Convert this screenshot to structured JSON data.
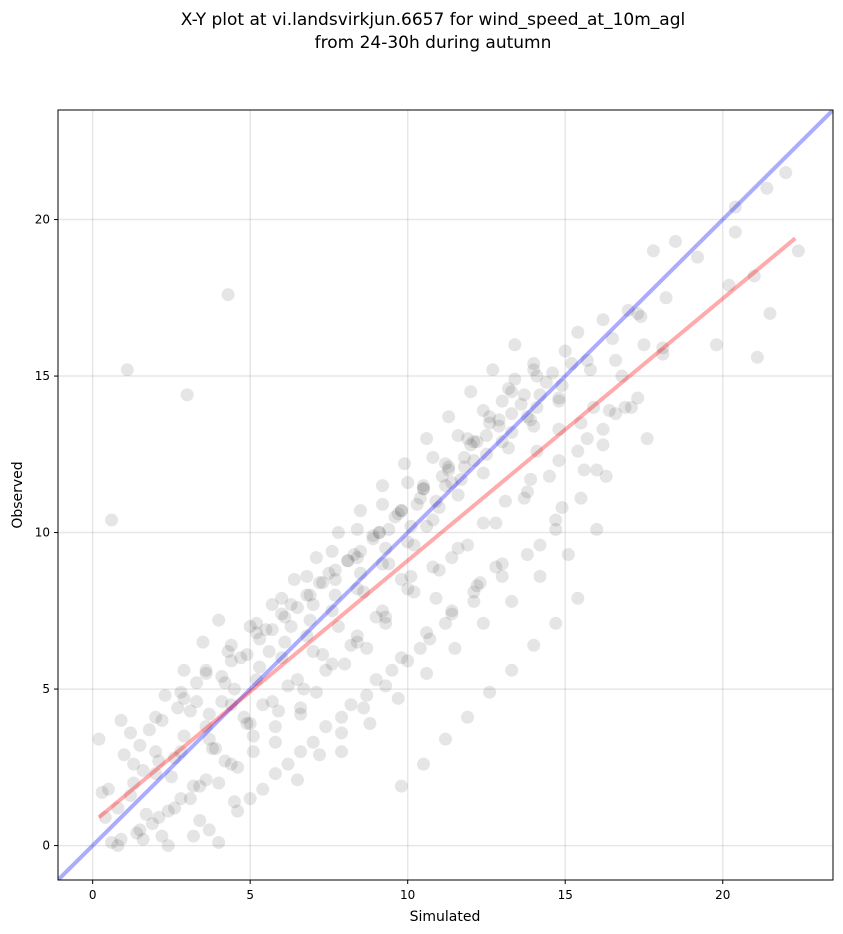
{
  "chart_data": {
    "type": "scatter",
    "title_line1": "X-Y plot at vi.landsvirkjun.6657 for wind_speed_at_10m_agl",
    "title_line2": "from 24-30h during autumn",
    "xlabel": "Simulated",
    "ylabel": "Observed",
    "xlim": [
      -1.1,
      23.5
    ],
    "ylim": [
      -1.1,
      23.5
    ],
    "xticks": [
      0,
      5,
      10,
      15,
      20
    ],
    "yticks": [
      0,
      5,
      10,
      15,
      20
    ],
    "grid": true,
    "colors": {
      "points": "#000000",
      "identity_line": "#0000ff",
      "fit_line": "#ff0000"
    },
    "lines": [
      {
        "name": "identity",
        "x": [
          -1.1,
          23.5
        ],
        "y": [
          -1.1,
          23.5
        ]
      },
      {
        "name": "fit",
        "x": [
          0.2,
          22.3
        ],
        "y": [
          0.9,
          19.4
        ]
      }
    ],
    "points": {
      "x": [
        1.1,
        4.3,
        3.0,
        0.6,
        0.2,
        0.5,
        0.9,
        1.3,
        1.5,
        1.7,
        2.0,
        2.2,
        2.5,
        2.8,
        3.1,
        3.4,
        3.7,
        4.0,
        4.2,
        4.5,
        4.8,
        0.3,
        0.8,
        1.2,
        1.6,
        2.1,
        2.6,
        3.2,
        3.8,
        4.1,
        4.6,
        5.0,
        5.4,
        5.8,
        6.2,
        6.6,
        7.0,
        7.4,
        7.8,
        8.2,
        8.6,
        9.0,
        9.4,
        9.8,
        10.2,
        10.6,
        11.0,
        11.4,
        11.8,
        12.2,
        12.6,
        13.0,
        13.4,
        13.8,
        14.2,
        14.6,
        15.0,
        15.4,
        15.8,
        16.2,
        16.6,
        17.0,
        17.4,
        17.8,
        18.2,
        18.5,
        19.8,
        20.4,
        21.1,
        21.5,
        22.0,
        22.4,
        20.2,
        21.0,
        17.5,
        16.0,
        14.9,
        14.2,
        13.8,
        12.3,
        11.4,
        10.9,
        10.1,
        9.3,
        8.7,
        8.0,
        7.1,
        6.6,
        5.8,
        5.1,
        4.4,
        3.6,
        3.1,
        2.4,
        1.9,
        1.4,
        0.9,
        0.6,
        5.2,
        6.0,
        6.8,
        7.5,
        8.3,
        9.1,
        9.8,
        10.5,
        11.3,
        12.0,
        12.9,
        13.6,
        14.4,
        15.2,
        15.9,
        16.8,
        17.6,
        18.1,
        2.3,
        2.9,
        3.5,
        4.0,
        4.7,
        5.5,
        6.3,
        7.2,
        8.1,
        8.9,
        9.6,
        10.4,
        11.1,
        11.8,
        12.5,
        13.3,
        14.1,
        14.8,
        15.6,
        16.4,
        3.9,
        4.9,
        5.7,
        6.5,
        7.3,
        8.4,
        9.2,
        10.0,
        10.8,
        11.6,
        12.4,
        13.1,
        13.9,
        14.7,
        15.5,
        16.3,
        1.0,
        1.8,
        2.7,
        3.3,
        4.4,
        5.3,
        6.1,
        6.9,
        7.7,
        8.5,
        9.4,
        10.3,
        11.2,
        12.1,
        13.0,
        13.9,
        14.8,
        15.7,
        16.6,
        17.3,
        7.9,
        8.8,
        9.7,
        10.6,
        11.5,
        12.4,
        13.3,
        14.2,
        15.1,
        16.0,
        2.6,
        3.4,
        4.2,
        5.1,
        5.9,
        6.7,
        7.6,
        8.4,
        9.3,
        10.2,
        11.0,
        11.9,
        12.8,
        13.7,
        14.5,
        15.4,
        16.2,
        17.1,
        3.7,
        4.6,
        5.4,
        6.2,
        7.0,
        7.9,
        8.7,
        9.5,
        10.4,
        11.2,
        12.1,
        13.0,
        13.8,
        14.7,
        0.4,
        1.2,
        2.0,
        2.8,
        3.6,
        4.4,
        5.2,
        6.0,
        6.8,
        7.6,
        8.4,
        9.2,
        10.0,
        10.8,
        11.6,
        12.4,
        13.2,
        14.0,
        14.8,
        4.0,
        3.2,
        2.4,
        1.6,
        0.8,
        6.5,
        7.2,
        7.9,
        8.6,
        9.3,
        10.0,
        10.7,
        11.4,
        12.1,
        12.8,
        9.8,
        10.5,
        11.2,
        11.9,
        12.6,
        13.3,
        14.0,
        14.7,
        15.4,
        5.6,
        6.3,
        7.0,
        7.7,
        8.4,
        9.1,
        9.8,
        10.5,
        11.2,
        11.9,
        12.6,
        13.3,
        14.0,
        1.5,
        2.2,
        2.9,
        3.6,
        4.3,
        5.0,
        5.7,
        6.4,
        7.1,
        7.8,
        8.5,
        9.2,
        9.9,
        10.6,
        11.3,
        12.0,
        12.7,
        13.4,
        14.1,
        14.8,
        15.5,
        16.2,
        16.9,
        2.0,
        2.8,
        3.6,
        4.4,
        5.2,
        6.0,
        6.8,
        7.6,
        8.4,
        9.2,
        10.0,
        10.8,
        11.6,
        12.4,
        13.2,
        14.0,
        3.3,
        4.1,
        4.9,
        5.7,
        6.5,
        7.3,
        8.1,
        8.9,
        9.7,
        10.5,
        11.3,
        12.1,
        12.9,
        13.7,
        5.0,
        5.8,
        6.6,
        7.4,
        8.2,
        9.0,
        9.8,
        10.6,
        11.4,
        12.2,
        13.0,
        1.3,
        2.1,
        2.9,
        3.7,
        4.5,
        5.3,
        6.1,
        6.9,
        7.7,
        8.5,
        9.3,
        10.1,
        10.9,
        11.7,
        12.5,
        13.3,
        14.1,
        14.9,
        15.7,
        16.5,
        17.3,
        18.1,
        19.2,
        20.4,
        21.4
      ],
      "y": [
        15.2,
        17.6,
        14.4,
        10.4,
        3.4,
        1.8,
        4.0,
        2.6,
        0.5,
        1.0,
        3.0,
        0.3,
        2.2,
        1.5,
        4.3,
        0.8,
        3.4,
        2.0,
        5.2,
        1.4,
        4.1,
        1.7,
        1.2,
        3.6,
        2.4,
        0.9,
        2.8,
        1.9,
        3.1,
        4.6,
        2.5,
        3.9,
        4.5,
        3.3,
        5.1,
        4.4,
        6.2,
        5.6,
        7.0,
        6.4,
        8.1,
        7.3,
        9.0,
        8.5,
        9.6,
        10.2,
        10.8,
        11.6,
        12.1,
        12.9,
        13.5,
        14.2,
        14.9,
        13.7,
        14.4,
        15.1,
        15.8,
        16.4,
        15.2,
        16.8,
        15.5,
        17.1,
        16.9,
        19.0,
        17.5,
        19.3,
        16.0,
        20.4,
        15.6,
        17.0,
        21.5,
        19.0,
        17.9,
        18.2,
        16.0,
        12.0,
        10.8,
        9.6,
        11.3,
        8.4,
        9.2,
        7.9,
        8.6,
        7.1,
        6.3,
        5.8,
        4.9,
        4.2,
        3.8,
        3.0,
        2.6,
        2.1,
        1.5,
        1.1,
        0.7,
        0.4,
        0.2,
        0.1,
        6.8,
        7.4,
        8.0,
        8.7,
        9.3,
        10.0,
        10.7,
        11.4,
        12.0,
        12.8,
        13.4,
        14.1,
        14.8,
        15.4,
        14.0,
        15.0,
        13.0,
        15.7,
        4.8,
        5.6,
        6.5,
        7.2,
        6.0,
        6.9,
        7.7,
        8.4,
        9.1,
        9.8,
        10.5,
        11.1,
        11.8,
        12.4,
        13.1,
        13.8,
        12.6,
        13.3,
        12.0,
        13.9,
        3.1,
        3.9,
        4.6,
        5.3,
        6.1,
        6.7,
        7.5,
        8.2,
        8.9,
        9.5,
        10.3,
        11.0,
        11.7,
        10.4,
        11.1,
        11.8,
        2.9,
        3.7,
        4.4,
        5.2,
        5.9,
        6.6,
        7.3,
        8.0,
        8.8,
        9.4,
        10.1,
        10.9,
        11.5,
        12.3,
        12.9,
        13.6,
        12.3,
        13.0,
        13.8,
        14.3,
        3.0,
        3.9,
        4.7,
        5.5,
        6.3,
        7.1,
        7.8,
        8.6,
        9.3,
        10.1,
        1.2,
        1.9,
        2.7,
        3.5,
        4.3,
        5.0,
        5.8,
        6.5,
        7.3,
        8.1,
        8.8,
        9.6,
        10.3,
        11.1,
        11.8,
        12.6,
        13.3,
        14.0,
        0.5,
        1.1,
        1.8,
        2.6,
        3.3,
        4.1,
        4.8,
        5.6,
        6.3,
        7.1,
        7.8,
        8.6,
        9.3,
        10.1,
        0.9,
        1.6,
        2.3,
        3.0,
        3.8,
        4.5,
        5.3,
        6.0,
        6.7,
        7.5,
        8.2,
        9.0,
        9.7,
        10.4,
        11.2,
        11.9,
        12.7,
        13.4,
        14.2,
        0.1,
        0.3,
        0.0,
        0.2,
        0.0,
        2.1,
        2.9,
        3.6,
        4.4,
        5.1,
        5.9,
        6.6,
        7.4,
        8.1,
        8.9,
        1.9,
        2.6,
        3.4,
        4.1,
        4.9,
        5.6,
        6.4,
        7.1,
        7.9,
        6.2,
        7.0,
        7.7,
        8.5,
        9.2,
        10.0,
        10.7,
        11.5,
        12.2,
        13.0,
        13.7,
        14.5,
        15.2,
        3.2,
        4.0,
        4.7,
        5.5,
        6.2,
        7.0,
        7.7,
        8.5,
        9.2,
        10.0,
        10.7,
        11.5,
        12.2,
        13.0,
        13.7,
        14.5,
        15.2,
        16.0,
        15.0,
        14.3,
        13.5,
        12.8,
        14.0,
        4.1,
        4.9,
        5.6,
        6.4,
        7.1,
        7.9,
        8.6,
        9.4,
        10.1,
        10.9,
        11.6,
        12.4,
        13.1,
        13.9,
        14.6,
        15.4,
        4.6,
        5.4,
        6.1,
        6.9,
        7.6,
        8.4,
        9.1,
        9.9,
        10.6,
        11.4,
        12.1,
        12.9,
        13.6,
        14.4,
        1.5,
        2.3,
        3.0,
        3.8,
        4.5,
        5.3,
        6.0,
        6.8,
        7.5,
        8.3,
        9.0,
        2.0,
        2.7,
        3.5,
        4.2,
        5.0,
        5.7,
        6.5,
        7.2,
        8.0,
        8.7,
        9.5,
        10.2,
        11.0,
        11.7,
        12.5,
        13.2,
        14.0,
        14.7,
        15.5,
        16.2,
        17.0,
        15.9,
        18.8,
        19.6,
        21.0
      ]
    }
  }
}
